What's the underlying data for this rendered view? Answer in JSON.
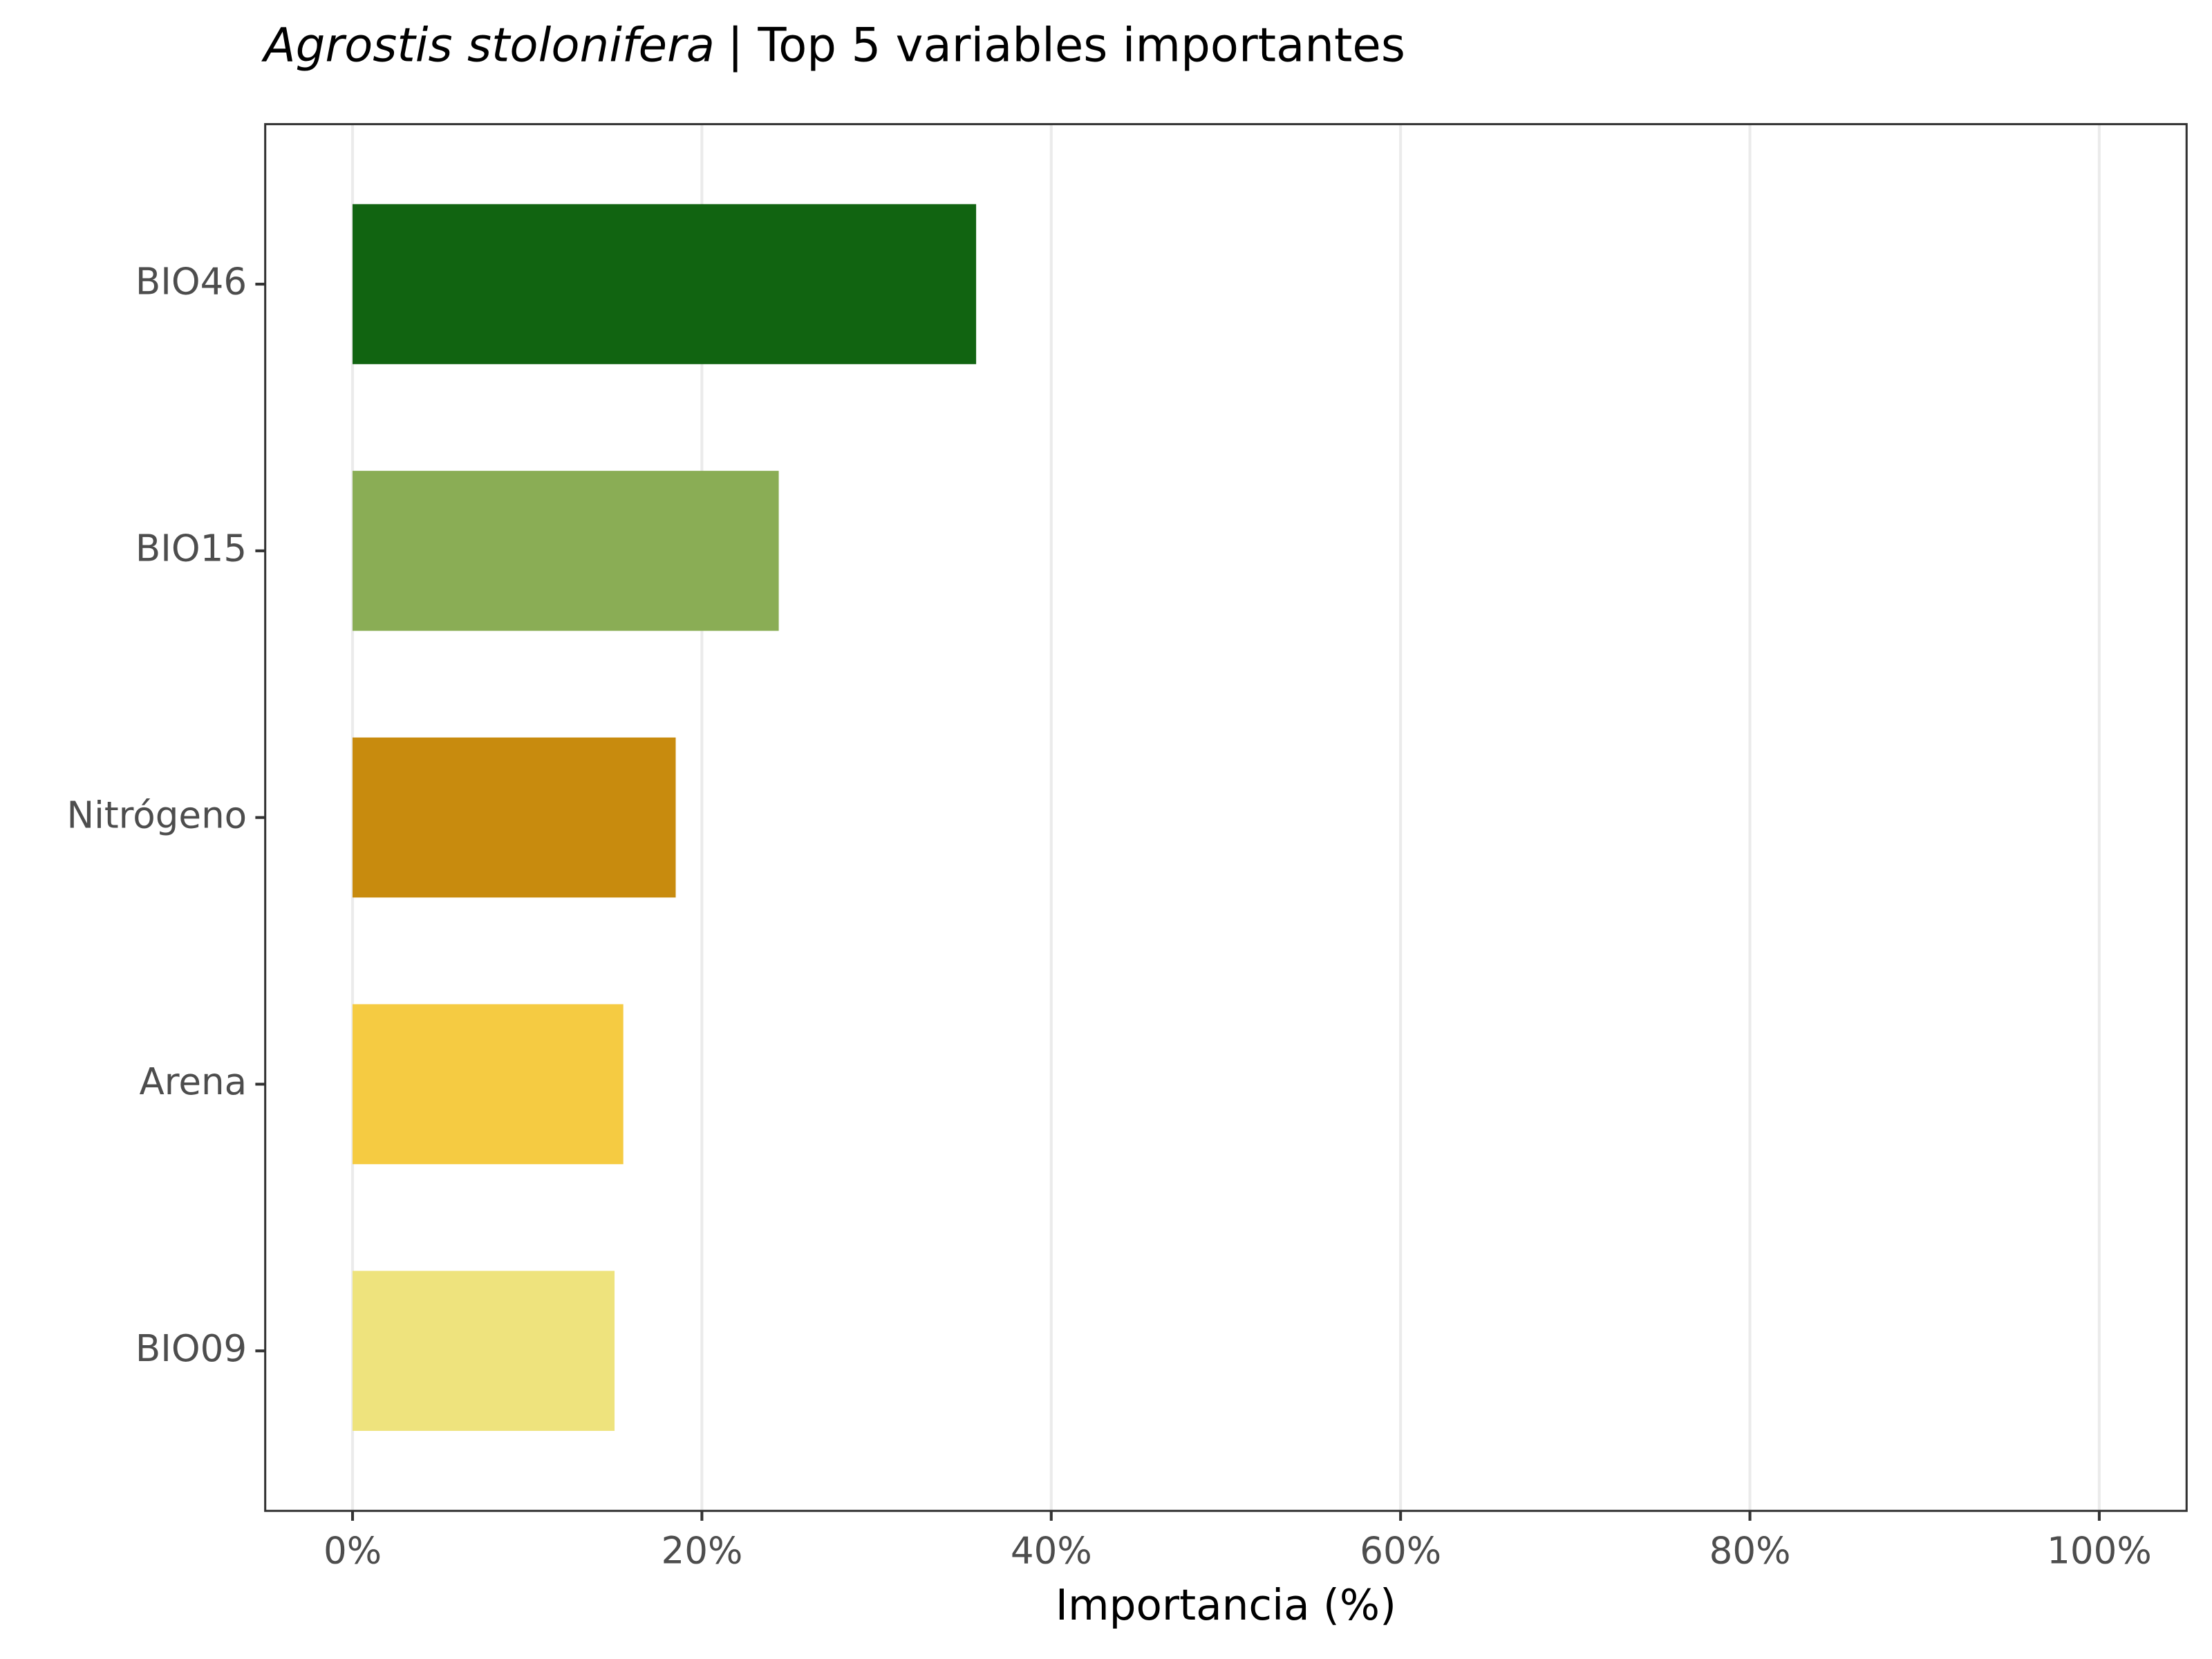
{
  "chart_data": {
    "type": "bar",
    "orientation": "horizontal",
    "title_italic": "Agrostis stolonifera",
    "title": "| Top 5 variables importantes",
    "x_label": "Importancia (%)",
    "categories": [
      "BIO46",
      "BIO15",
      "Nitrógeno",
      "Arena",
      "BIO09"
    ],
    "values": [
      35.7,
      24.4,
      18.5,
      15.5,
      15.0
    ],
    "colors": [
      "#116411",
      "#8aad55",
      "#c88b0e",
      "#f5cb42",
      "#eee37d"
    ],
    "xlim": [
      -5,
      105
    ],
    "xticks": [
      {
        "value": 0,
        "label": "0%"
      },
      {
        "value": 20,
        "label": "20%"
      },
      {
        "value": 40,
        "label": "40%"
      },
      {
        "value": 60,
        "label": "60%"
      },
      {
        "value": 80,
        "label": "80%"
      },
      {
        "value": 100,
        "label": "100%"
      }
    ],
    "grid": true
  }
}
